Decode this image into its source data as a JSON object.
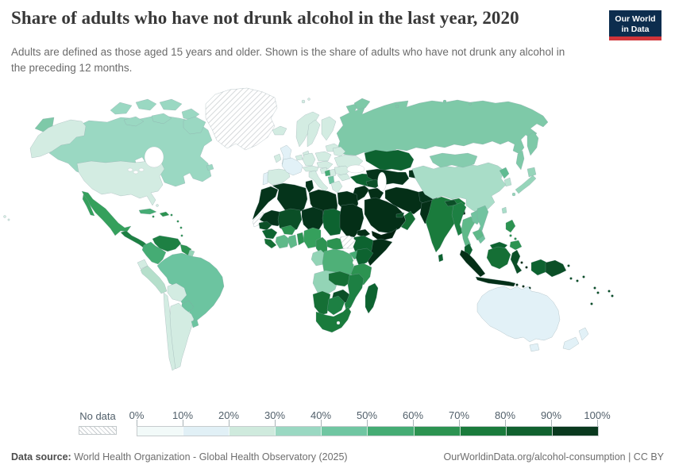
{
  "header": {
    "title": "Share of adults who have not drunk alcohol in the last year, 2020",
    "subtitle": "Adults are defined as those aged 15 years and older. Shown is the share of adults who have not drunk any alcohol in the preceding 12 months.",
    "logo": {
      "line1": "Our World",
      "line2": "in Data",
      "bg": "#0d2d4e",
      "accent": "#d1353a"
    }
  },
  "legend": {
    "no_data_label": "No data",
    "ticks": [
      "0%",
      "10%",
      "20%",
      "30%",
      "40%",
      "50%",
      "60%",
      "70%",
      "80%",
      "90%",
      "100%"
    ],
    "bin_colors": [
      "#f2faf9",
      "#e1f0f6",
      "#cfeadd",
      "#9ad8c2",
      "#70c6a2",
      "#45ac74",
      "#2c9351",
      "#1a7b3c",
      "#11612f",
      "#09391e"
    ]
  },
  "map": {
    "palette": {
      "noData": "url(#hatch)",
      "b2": "#e2f1f7",
      "b3": "#d3ece2",
      "b4": "#9ad8c2",
      "b5": "#6cc4a0",
      "b6": "#45ac74",
      "b7": "#2c9351",
      "b8": "#1a7b3c",
      "b9": "#0d6330",
      "b10": "#05341b",
      "d1": "#1d8043",
      "d3": "#156f35",
      "d5": "#0b4f27",
      "d6": "#042f17",
      "d7": "#02230f",
      "t1": "#7ec9a8",
      "t2": "#85ccae",
      "t3": "#a9ddc8",
      "t4": "#93d4b6",
      "t5": "#b5dfcb",
      "t6": "#96d5ba",
      "k1": "#b7e3d1",
      "m1": "#35a05c",
      "m2": "#5fb989",
      "m3": "#72c3a0",
      "m4": "#60bc92",
      "m5": "#4fb078"
    },
    "regions": {
      "chukotka": "t1",
      "russia": "t1",
      "kamchatka": "t1",
      "sakhalin": "t1",
      "novayazemlya": "t1",
      "arcticislands": "t1",
      "svalbard": "b3",
      "canada": "b4",
      "canadaislands": "b4",
      "alaska": "b3",
      "greenland": "noData",
      "iceland": "b3",
      "usa": "b3",
      "hawaii": "b3",
      "bahamas": "b3",
      "mexico": "m1",
      "centralamerica": "d1",
      "cuba": "b6",
      "hispaniola": "b7",
      "caribbeansmall": "b7",
      "venezuela": "d1",
      "colombia": "b6",
      "guyana": "b7",
      "suriname": "t4",
      "ecuador": "b3",
      "peru": "t5",
      "brazil": "b5",
      "bolivia": "b3",
      "paraguay": "b5",
      "chile": "b3",
      "argentina": "b3",
      "uruguay": "b5",
      "norway": "b3",
      "sweden": "b3",
      "finland": "b3",
      "baltics": "b3",
      "denmark": "b3",
      "uk": "b2",
      "ireland": "b3",
      "portugal": "b2",
      "spain": "b3",
      "france": "b2",
      "benelux": "b3",
      "germany": "b3",
      "alpine": "b3",
      "italy": "b3",
      "poland": "b3",
      "czechhungary": "b3",
      "belarus": "b3",
      "ukraine": "b3",
      "romania": "b3",
      "bulgaria": "b3",
      "serbia": "b3",
      "croatia": "b3",
      "bosnia": "b6",
      "albania": "b5",
      "greece": "b3",
      "turkey": "b9",
      "kazakhstan": "b9",
      "centralasia": "b10",
      "kyrgyztajik": "b10",
      "caucasus": "d5",
      "levant": "d6",
      "iraq": "d6",
      "saudi": "d6",
      "yemen": "d7",
      "oman": "d3",
      "uae": "d5",
      "iran": "d6",
      "afghanistan": "b10",
      "pakistan": "d6",
      "morocco": "b10",
      "wsahara": "noData",
      "algeria": "b10",
      "tunisia": "b10",
      "libya": "d6",
      "egypt": "d6",
      "mauritania": "b10",
      "mali": "d5",
      "niger": "b10",
      "chad": "b9",
      "sudan": "d6",
      "senegal": "d5",
      "guinea": "b9",
      "sierraliberia": "d3",
      "ivorycoast": "m2",
      "ghana": "m2",
      "togobenin": "b7",
      "burkina": "b7",
      "nigeria": "m1",
      "cameroon": "b7",
      "car": "b7",
      "eritrea": "d6",
      "ethiopia": "b9",
      "somalia": "d6",
      "southsudan": "noData",
      "uganda": "b6",
      "kenya": "b9",
      "rwandaburundi": "b7",
      "gaboncongo": "t4",
      "drc": "m5",
      "tanzania": "b7",
      "angola": "t4",
      "zambia": "d3",
      "malawi": "d5",
      "mozambique": "d1",
      "zimbabwe": "d5",
      "namibia": "d3",
      "botswana": "d1",
      "southafrica": "b8",
      "madagascar": "b9",
      "india": "b8",
      "nepal": "d5",
      "bangladesh": "d7",
      "srilanka": "b9",
      "china": "t3",
      "taiwan": "t3",
      "mongolia": "t2",
      "nkorea": "m4",
      "skorea": "k1",
      "japan": "t6",
      "myanmar": "d1",
      "thailand": "m2",
      "laos": "m3",
      "vietnam": "m3",
      "cambodia": "m2",
      "malaysia": "b9",
      "borneomalaysia": "b9",
      "sumatra": "d6",
      "java": "d6",
      "kalimantan": "d3",
      "sulawesi": "d5",
      "indonesiasmall": "d6",
      "westpapua": "b9",
      "png": "d5",
      "philippines": "b7",
      "australia": "b2",
      "tasmania": "b2",
      "nz": "b2",
      "pacificislands": "d5"
    }
  },
  "footer": {
    "source_label": "Data source:",
    "source_text": "World Health Organization - Global Health Observatory (2025)",
    "link_text": "OurWorldinData.org/alcohol-consumption | CC BY"
  }
}
